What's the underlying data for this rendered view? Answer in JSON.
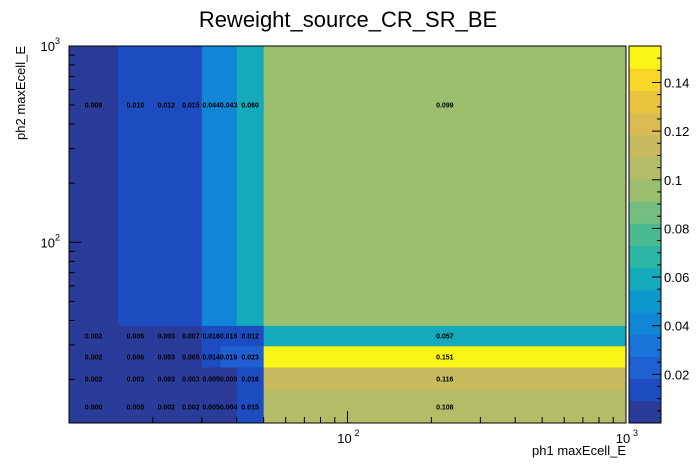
{
  "chart_data": {
    "type": "heatmap",
    "title": "Reweight_source_CR_SR_BE",
    "xlabel": "ph1 maxEcell_E",
    "ylabel": "ph2 maxEcell_E",
    "x_scale": "log",
    "y_scale": "log",
    "xlim": [
      10,
      1000
    ],
    "ylim": [
      12,
      1000
    ],
    "x_edges": [
      10,
      15,
      20,
      25,
      30,
      35,
      40,
      50,
      1000
    ],
    "y_edges": [
      12,
      17.5,
      23,
      29.5,
      37.5,
      1000
    ],
    "x_ticks": [
      {
        "value": 100,
        "base": "10",
        "exp": "2"
      },
      {
        "value": 1000,
        "base": "10",
        "exp": "3"
      }
    ],
    "y_ticks": [
      {
        "value": 100,
        "base": "10",
        "exp": "2"
      },
      {
        "value": 1000,
        "base": "10",
        "exp": "3"
      }
    ],
    "cells": [
      {
        "ix": 0,
        "iy": 4,
        "value": 0.009,
        "label": "0.009"
      },
      {
        "ix": 1,
        "iy": 4,
        "value": 0.01,
        "label": "0.010"
      },
      {
        "ix": 2,
        "iy": 4,
        "value": 0.012,
        "label": "0.012"
      },
      {
        "ix": 3,
        "iy": 4,
        "value": 0.015,
        "label": "0.015"
      },
      {
        "ix": 4,
        "iy": 4,
        "value": 0.044,
        "label": "0.044"
      },
      {
        "ix": 5,
        "iy": 4,
        "value": 0.043,
        "label": "0.043"
      },
      {
        "ix": 6,
        "iy": 4,
        "value": 0.06,
        "label": "0.060"
      },
      {
        "ix": 7,
        "iy": 4,
        "value": 0.099,
        "label": "0.099"
      },
      {
        "ix": 0,
        "iy": 3,
        "value": 0.002,
        "label": "0.002"
      },
      {
        "ix": 1,
        "iy": 3,
        "value": 0.006,
        "label": "0.006"
      },
      {
        "ix": 2,
        "iy": 3,
        "value": 0.003,
        "label": "0.003"
      },
      {
        "ix": 3,
        "iy": 3,
        "value": 0.007,
        "label": "0.007"
      },
      {
        "ix": 4,
        "iy": 3,
        "value": 0.016,
        "label": "0.016"
      },
      {
        "ix": 5,
        "iy": 3,
        "value": 0.018,
        "label": "0.018"
      },
      {
        "ix": 6,
        "iy": 3,
        "value": 0.012,
        "label": "0.012"
      },
      {
        "ix": 7,
        "iy": 3,
        "value": 0.057,
        "label": "0.057"
      },
      {
        "ix": 0,
        "iy": 2,
        "value": 0.002,
        "label": "0.002"
      },
      {
        "ix": 1,
        "iy": 2,
        "value": 0.006,
        "label": "0.006"
      },
      {
        "ix": 2,
        "iy": 2,
        "value": 0.003,
        "label": "0.003"
      },
      {
        "ix": 3,
        "iy": 2,
        "value": 0.005,
        "label": "0.005"
      },
      {
        "ix": 4,
        "iy": 2,
        "value": 0.014,
        "label": "0.014"
      },
      {
        "ix": 5,
        "iy": 2,
        "value": 0.019,
        "label": "0.019"
      },
      {
        "ix": 6,
        "iy": 2,
        "value": 0.023,
        "label": "0.023"
      },
      {
        "ix": 7,
        "iy": 2,
        "value": 0.151,
        "label": "0.151"
      },
      {
        "ix": 0,
        "iy": 1,
        "value": 0.002,
        "label": "0.002"
      },
      {
        "ix": 1,
        "iy": 1,
        "value": 0.003,
        "label": "0.003"
      },
      {
        "ix": 2,
        "iy": 1,
        "value": 0.003,
        "label": "0.003"
      },
      {
        "ix": 3,
        "iy": 1,
        "value": 0.003,
        "label": "0.003"
      },
      {
        "ix": 4,
        "iy": 1,
        "value": 0.005,
        "label": "0.005"
      },
      {
        "ix": 5,
        "iy": 1,
        "value": 0.009,
        "label": "0.009"
      },
      {
        "ix": 6,
        "iy": 1,
        "value": 0.016,
        "label": "0.016"
      },
      {
        "ix": 7,
        "iy": 1,
        "value": 0.116,
        "label": "0.116"
      },
      {
        "ix": 0,
        "iy": 0,
        "value": 0.0,
        "label": "0.000"
      },
      {
        "ix": 1,
        "iy": 0,
        "value": 0.0,
        "label": "0.000"
      },
      {
        "ix": 2,
        "iy": 0,
        "value": 0.002,
        "label": "0.002"
      },
      {
        "ix": 3,
        "iy": 0,
        "value": 0.002,
        "label": "0.002"
      },
      {
        "ix": 4,
        "iy": 0,
        "value": 0.005,
        "label": "0.005"
      },
      {
        "ix": 5,
        "iy": 0,
        "value": 0.004,
        "label": "0.004"
      },
      {
        "ix": 6,
        "iy": 0,
        "value": 0.015,
        "label": "0.015"
      },
      {
        "ix": 7,
        "iy": 0,
        "value": 0.108,
        "label": "0.108"
      }
    ],
    "zlim": [
      0,
      0.155
    ],
    "colorbar_ticks": [
      {
        "value": 0.02,
        "label": "0.02"
      },
      {
        "value": 0.04,
        "label": "0.04"
      },
      {
        "value": 0.06,
        "label": "0.06"
      },
      {
        "value": 0.08,
        "label": "0.08"
      },
      {
        "value": 0.1,
        "label": "0.1"
      },
      {
        "value": 0.12,
        "label": "0.12"
      },
      {
        "value": 0.14,
        "label": "0.14"
      }
    ],
    "palette": [
      "#2a3b99",
      "#1c4cc0",
      "#1e5fd1",
      "#1a73d8",
      "#1286d6",
      "#0b99cd",
      "#14a9bb",
      "#2ab5a4",
      "#4abb91",
      "#74bf80",
      "#9bbf6e",
      "#b5bc67",
      "#c8bb5f",
      "#dbbc53",
      "#e9c43f",
      "#f7d628",
      "#faf516"
    ]
  }
}
